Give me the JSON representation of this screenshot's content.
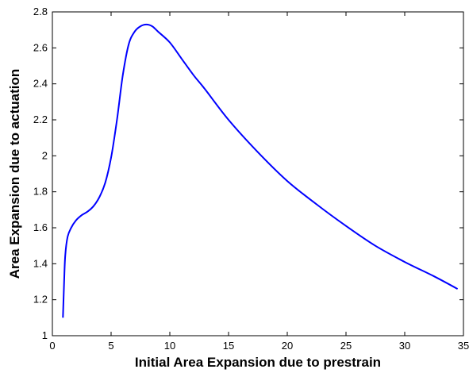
{
  "chart_data": {
    "type": "line",
    "title": "",
    "xlabel": "Initial Area Expansion due to prestrain",
    "ylabel": "Area Expansion due to actuation",
    "xlim": [
      0,
      35
    ],
    "ylim": [
      1,
      2.8
    ],
    "xticks": [
      0,
      5,
      10,
      15,
      20,
      25,
      30,
      35
    ],
    "yticks": [
      1,
      1.2,
      1.4,
      1.6,
      1.8,
      2,
      2.2,
      2.4,
      2.6,
      2.8
    ],
    "xtick_labels": [
      "0",
      "5",
      "10",
      "15",
      "20",
      "25",
      "30",
      "35"
    ],
    "ytick_labels": [
      "1",
      "1.2",
      "1.4",
      "1.6",
      "1.8",
      "2",
      "2.2",
      "2.4",
      "2.6",
      "2.8"
    ],
    "grid": false,
    "legend": "none",
    "series": [
      {
        "color": "#0000ff",
        "x": [
          0.9,
          1.0,
          1.1,
          1.3,
          1.6,
          2.0,
          2.5,
          3.0,
          3.5,
          4.0,
          4.5,
          5.0,
          5.5,
          6.0,
          6.5,
          7.0,
          7.5,
          8.0,
          8.5,
          9.0,
          10.0,
          11.0,
          12.0,
          13.0,
          15.0,
          17.5,
          20.0,
          22.5,
          25.0,
          27.5,
          30.0,
          32.5,
          34.5
        ],
        "y": [
          1.1,
          1.3,
          1.45,
          1.55,
          1.6,
          1.64,
          1.67,
          1.69,
          1.72,
          1.77,
          1.85,
          1.99,
          2.2,
          2.45,
          2.62,
          2.69,
          2.72,
          2.73,
          2.72,
          2.69,
          2.63,
          2.54,
          2.45,
          2.37,
          2.2,
          2.02,
          1.86,
          1.73,
          1.61,
          1.5,
          1.41,
          1.33,
          1.26
        ]
      }
    ]
  }
}
